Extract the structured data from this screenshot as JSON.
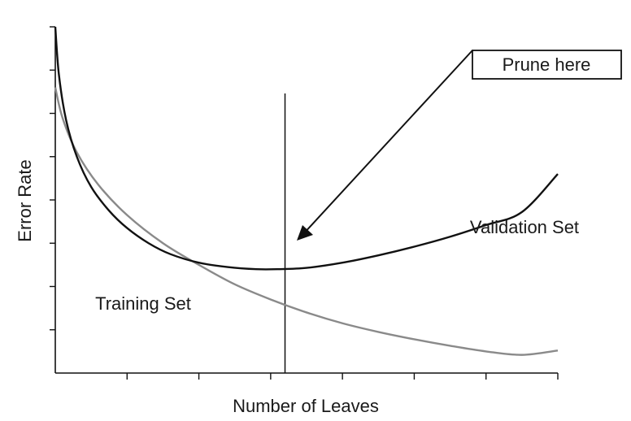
{
  "chart_data": {
    "type": "line",
    "title": "",
    "xlabel": "Number of Leaves",
    "ylabel": "Error Rate",
    "x_tick_count": 8,
    "y_tick_count": 8,
    "grid": false,
    "xlim": [
      0,
      7
    ],
    "ylim": [
      0,
      8
    ],
    "series": [
      {
        "name": "Validation Set",
        "color": "#111111",
        "x": [
          0.0,
          0.05,
          0.15,
          0.3,
          0.5,
          0.75,
          1.0,
          1.3,
          1.6,
          2.0,
          2.4,
          2.8,
          3.1,
          3.5,
          4.0,
          4.5,
          5.0,
          5.5,
          6.0,
          6.5,
          7.0
        ],
        "y": [
          8.0,
          6.9,
          5.85,
          5.0,
          4.3,
          3.75,
          3.35,
          3.0,
          2.75,
          2.55,
          2.45,
          2.4,
          2.4,
          2.43,
          2.55,
          2.72,
          2.92,
          3.15,
          3.42,
          3.72,
          4.6
        ]
      },
      {
        "name": "Training Set",
        "color": "#8a8a8a",
        "x": [
          0.0,
          0.1,
          0.3,
          0.6,
          1.0,
          1.5,
          2.0,
          2.5,
          3.0,
          3.5,
          4.0,
          4.5,
          5.0,
          5.5,
          6.0,
          6.5,
          7.0
        ],
        "y": [
          6.6,
          5.9,
          5.1,
          4.35,
          3.65,
          3.0,
          2.5,
          2.05,
          1.7,
          1.4,
          1.15,
          0.95,
          0.78,
          0.63,
          0.5,
          0.42,
          0.52
        ]
      }
    ],
    "prune_line_x": 3.2,
    "annotations": {
      "callout": "Prune here",
      "training_label": "Training Set",
      "validation_label": "Validation Set"
    }
  }
}
